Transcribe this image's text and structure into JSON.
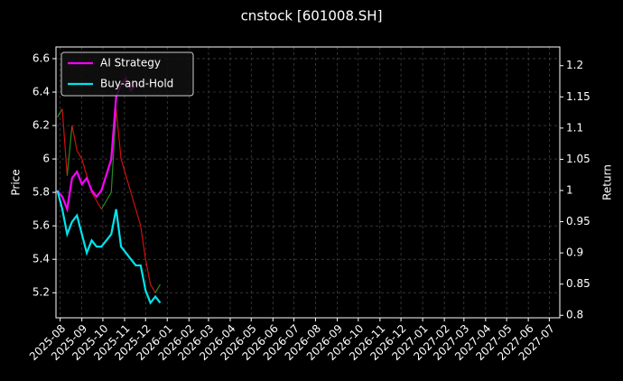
{
  "chart_data": {
    "type": "line",
    "title": "cnstock [601008.SH]",
    "ylabel": "Price",
    "y2label": "Return",
    "ylim": [
      5.05,
      6.67
    ],
    "yticks": [
      5.2,
      5.4,
      5.6,
      5.8,
      6.0,
      6.2,
      6.4,
      6.6
    ],
    "y2lim": [
      0.796,
      1.23
    ],
    "y2ticks": [
      0.8,
      0.85,
      0.9,
      0.95,
      1.0,
      1.05,
      1.1,
      1.15,
      1.2
    ],
    "xlim": [
      "2025-07-26",
      "2027-07-16"
    ],
    "xticks": [
      "2025-08",
      "2025-09",
      "2025-10",
      "2025-11",
      "2025-12",
      "2026-01",
      "2026-02",
      "2026-03",
      "2026-04",
      "2026-05",
      "2026-06",
      "2026-07",
      "2026-08",
      "2026-09",
      "2026-10",
      "2026-11",
      "2026-12",
      "2027-01",
      "2027-02",
      "2027-03",
      "2027-04",
      "2027-05",
      "2027-06",
      "2027-07"
    ],
    "grid": true,
    "legend": "upper left",
    "x": [
      "2025-07-28",
      "2025-08-04",
      "2025-08-11",
      "2025-08-18",
      "2025-08-25",
      "2025-09-01",
      "2025-09-08",
      "2025-09-15",
      "2025-09-22",
      "2025-09-29",
      "2025-10-13",
      "2025-10-20",
      "2025-10-27",
      "2025-11-03",
      "2025-11-10",
      "2025-11-17",
      "2025-11-24",
      "2025-12-01",
      "2025-12-08",
      "2025-12-15",
      "2025-12-22"
    ],
    "price": {
      "color_up": "#1f8f1f",
      "color_down": "#d01010",
      "values": [
        6.25,
        6.3,
        5.9,
        6.2,
        6.05,
        6.0,
        5.9,
        5.8,
        5.75,
        5.7,
        5.8,
        6.3,
        6.0,
        5.9,
        5.8,
        5.7,
        5.6,
        5.4,
        5.25,
        5.2,
        5.25
      ]
    },
    "series": [
      {
        "name": "AI Strategy",
        "color": "#ff00ff",
        "axis": "y2",
        "values": [
          1.0,
          0.99,
          0.97,
          1.02,
          1.03,
          1.01,
          1.02,
          1.0,
          0.99,
          1.0,
          1.05,
          1.15,
          1.17,
          1.18,
          1.16,
          1.17,
          1.17,
          null,
          null,
          null,
          null
        ]
      },
      {
        "name": "Buy-and-Hold",
        "color": "#00e5ee",
        "axis": "y2",
        "values": [
          1.0,
          0.97,
          0.93,
          0.95,
          0.96,
          0.93,
          0.9,
          0.92,
          0.91,
          0.91,
          0.93,
          0.97,
          0.91,
          0.9,
          0.89,
          0.88,
          0.88,
          0.84,
          0.82,
          0.83,
          0.82
        ]
      }
    ]
  }
}
